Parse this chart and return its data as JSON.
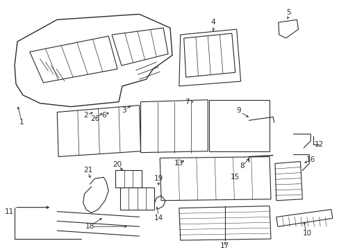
{
  "bg_color": "#ffffff",
  "line_color": "#2a2a2a",
  "fig_width": 4.89,
  "fig_height": 3.6,
  "dpi": 100,
  "lw": 0.8,
  "label_fontsize": 7.5
}
